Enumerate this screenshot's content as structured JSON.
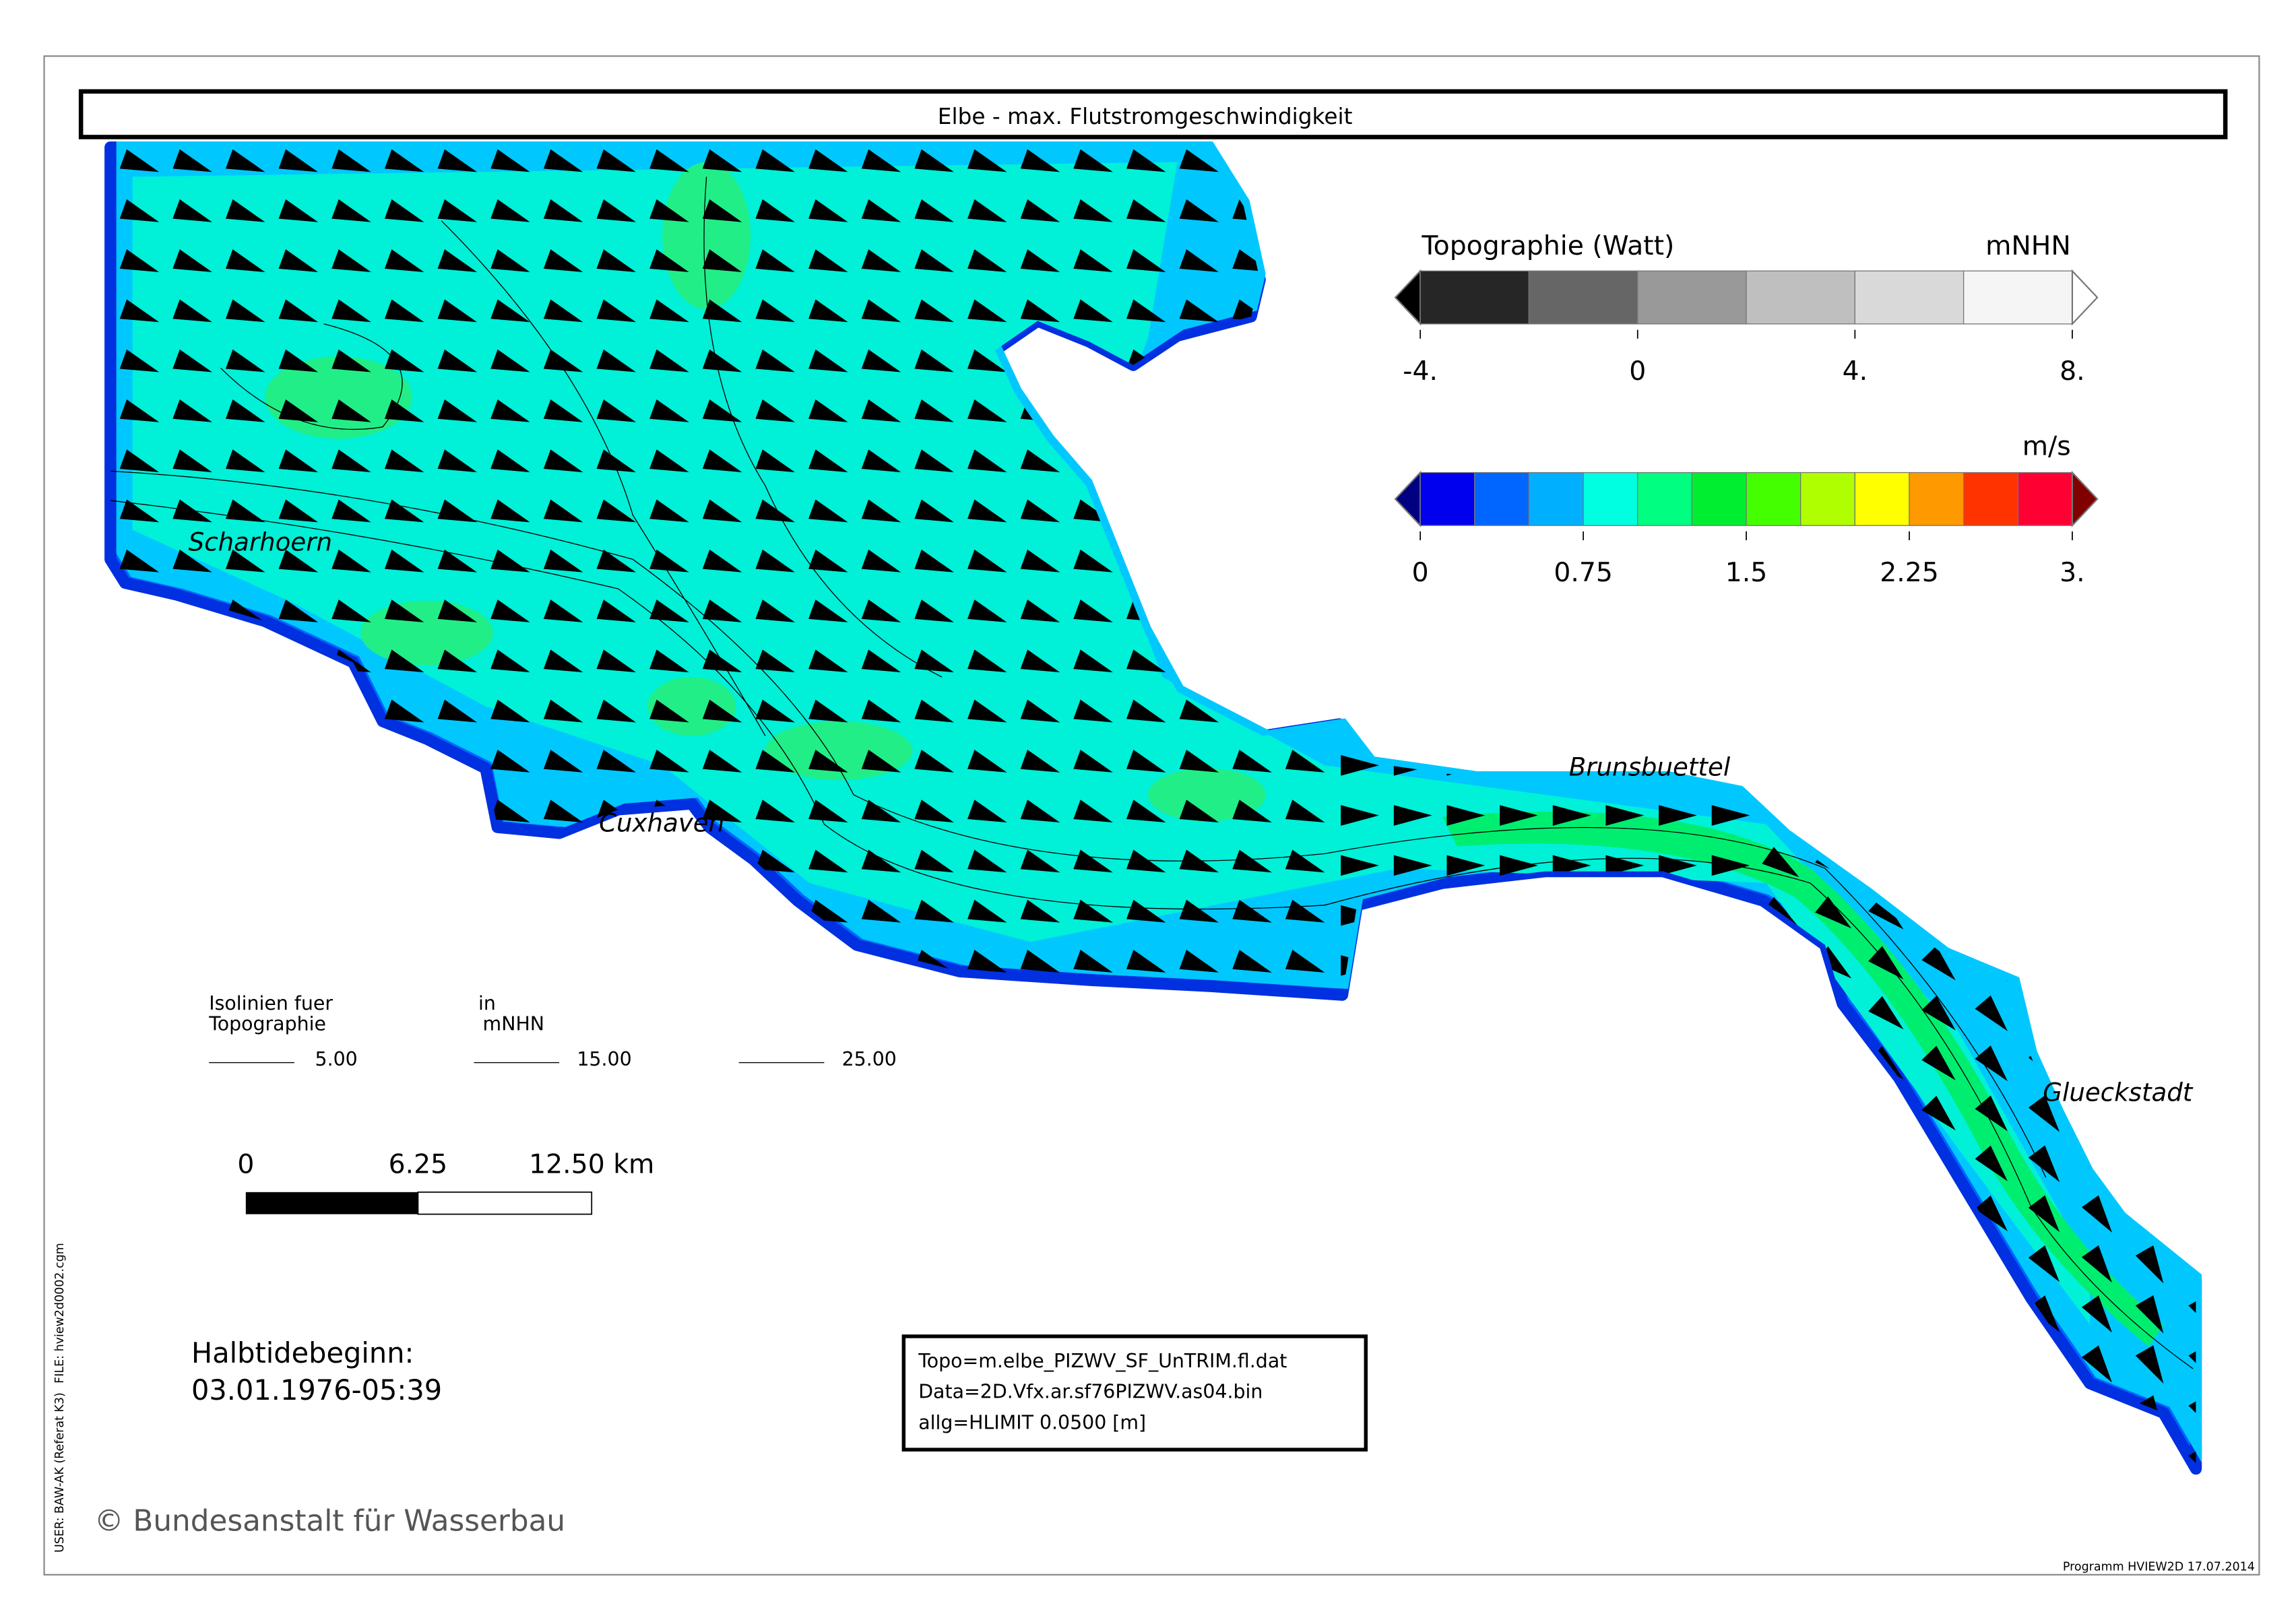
{
  "title": "Elbe - max. Flutstromgeschwindigkeit",
  "topography_legend": {
    "title": "Topographie (Watt)",
    "unit": "mNHN",
    "ticks": [
      "-4.",
      "0",
      "4.",
      "8."
    ],
    "colors": [
      "#000000",
      "#262626",
      "#666666",
      "#999999",
      "#bfbfbf",
      "#d9d9d9",
      "#f5f5f5",
      "#ffffff"
    ]
  },
  "velocity_legend": {
    "unit": "m/s",
    "ticks": [
      "0",
      "0.75",
      "1.5",
      "2.25",
      "3."
    ],
    "colors": [
      "#000080",
      "#0000ee",
      "#0066ff",
      "#00b0ff",
      "#00ffe0",
      "#00ff80",
      "#00ee30",
      "#44ff00",
      "#b0ff00",
      "#ffff00",
      "#ff9900",
      "#ff3300",
      "#ff0033",
      "#800000"
    ]
  },
  "places": [
    "Scharhoern",
    "Cuxhaven",
    "Brunsbuettel",
    "Glueckstadt"
  ],
  "isolines": {
    "label": [
      "Isolinien fuer",
      "Topographie"
    ],
    "unit": [
      "in",
      "mNHN"
    ],
    "values": [
      "5.00",
      "15.00",
      "25.00"
    ]
  },
  "scale_bar": {
    "labels": [
      "0",
      "6.25",
      "12.50 km"
    ]
  },
  "timestamp": {
    "label": "Halbtidebeginn:",
    "value": "03.01.1976-05:39"
  },
  "info_box": [
    "Topo=m.elbe_PIZWV_SF_UnTRIM.fl.dat",
    "Data=2D.Vfx.ar.sf76PIZWV.as04.bin",
    "allg=HLIMIT  0.0500 [m]"
  ],
  "side_text": [
    "USER: BAW-AK (Referat K3)",
    "FILE: hview2d0002.cgm"
  ],
  "copyright": "© Bundesanstalt für Wasserbau",
  "footer": "Programm HVIEW2D   17.07.2014"
}
